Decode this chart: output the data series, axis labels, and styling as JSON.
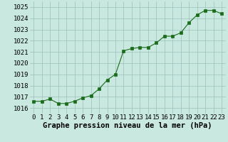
{
  "x": [
    0,
    1,
    2,
    3,
    4,
    5,
    6,
    7,
    8,
    9,
    10,
    11,
    12,
    13,
    14,
    15,
    16,
    17,
    18,
    19,
    20,
    21,
    22,
    23
  ],
  "y": [
    1016.6,
    1016.6,
    1016.8,
    1016.4,
    1016.4,
    1016.6,
    1016.9,
    1017.1,
    1017.7,
    1018.5,
    1019.0,
    1021.1,
    1021.3,
    1021.4,
    1021.4,
    1021.8,
    1022.4,
    1022.4,
    1022.7,
    1023.6,
    1024.3,
    1024.7,
    1024.7,
    1024.4
  ],
  "line_color": "#1a6b1a",
  "marker_color": "#1a6b1a",
  "bg_color": "#c8e8e0",
  "grid_color": "#9bbfb8",
  "xlabel": "Graphe pression niveau de la mer (hPa)",
  "ylim": [
    1015.5,
    1025.5
  ],
  "yticks": [
    1016,
    1017,
    1018,
    1019,
    1020,
    1021,
    1022,
    1023,
    1024,
    1025
  ],
  "xticks": [
    0,
    1,
    2,
    3,
    4,
    5,
    6,
    7,
    8,
    9,
    10,
    11,
    12,
    13,
    14,
    15,
    16,
    17,
    18,
    19,
    20,
    21,
    22,
    23
  ],
  "xlabel_fontsize": 7.5,
  "tick_fontsize": 6.5
}
